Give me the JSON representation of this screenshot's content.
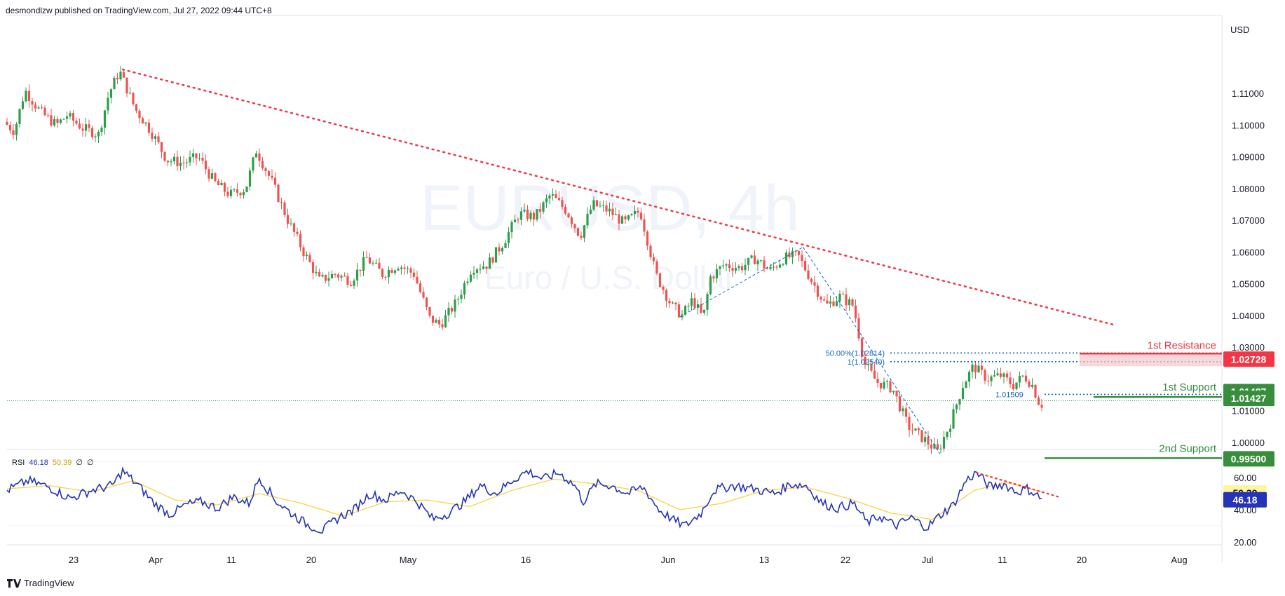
{
  "header": {
    "publisher": "desmondlzw published on TradingView.com, Jul 27, 2022 09:44 UTC+8"
  },
  "footer": {
    "brand": "TradingView"
  },
  "watermark": {
    "symbol": "EURUSD, 4h",
    "name": "Euro / U.S. Dollar"
  },
  "colors": {
    "up": "#2e9e48",
    "down": "#ef5350",
    "resistance": "#f23645",
    "support": "#388e3c",
    "rsi": "#2433b8",
    "rsi_ma": "#f5d547",
    "fib": "#1565c0"
  },
  "chart_data": [
    {
      "type": "candlestick",
      "currency_label": "USD",
      "ylim": [
        0.99,
        1.12
      ],
      "y_ticks": [
        "1.11000",
        "1.10000",
        "1.09000",
        "1.08000",
        "1.07000",
        "1.06000",
        "1.05000",
        "1.04000",
        "1.03000",
        "1.01000",
        "1.00000"
      ],
      "x_ticks": [
        "23",
        "Apr",
        "11",
        "20",
        "May",
        "16",
        "Jun",
        "13",
        "22",
        "Jul",
        "11",
        "20",
        "Aug"
      ],
      "anchors": [
        {
          "t": 0,
          "v": 1.101
        },
        {
          "t": 10,
          "v": 1.098
        },
        {
          "t": 20,
          "v": 1.111
        },
        {
          "t": 35,
          "v": 1.104
        },
        {
          "t": 50,
          "v": 1.1
        },
        {
          "t": 60,
          "v": 1.103
        },
        {
          "t": 75,
          "v": 1.099
        },
        {
          "t": 90,
          "v": 1.097
        },
        {
          "t": 100,
          "v": 1.11
        },
        {
          "t": 110,
          "v": 1.117
        },
        {
          "t": 125,
          "v": 1.105
        },
        {
          "t": 140,
          "v": 1.098
        },
        {
          "t": 155,
          "v": 1.089
        },
        {
          "t": 170,
          "v": 1.088
        },
        {
          "t": 185,
          "v": 1.09
        },
        {
          "t": 200,
          "v": 1.082
        },
        {
          "t": 215,
          "v": 1.078
        },
        {
          "t": 230,
          "v": 1.08
        },
        {
          "t": 240,
          "v": 1.092
        },
        {
          "t": 255,
          "v": 1.082
        },
        {
          "t": 270,
          "v": 1.07
        },
        {
          "t": 285,
          "v": 1.06
        },
        {
          "t": 300,
          "v": 1.051
        },
        {
          "t": 315,
          "v": 1.053
        },
        {
          "t": 330,
          "v": 1.051
        },
        {
          "t": 345,
          "v": 1.058
        },
        {
          "t": 360,
          "v": 1.053
        },
        {
          "t": 375,
          "v": 1.056
        },
        {
          "t": 390,
          "v": 1.053
        },
        {
          "t": 405,
          "v": 1.039
        },
        {
          "t": 415,
          "v": 1.037
        },
        {
          "t": 430,
          "v": 1.044
        },
        {
          "t": 445,
          "v": 1.055
        },
        {
          "t": 460,
          "v": 1.056
        },
        {
          "t": 475,
          "v": 1.063
        },
        {
          "t": 490,
          "v": 1.072
        },
        {
          "t": 505,
          "v": 1.071
        },
        {
          "t": 520,
          "v": 1.078
        },
        {
          "t": 535,
          "v": 1.073
        },
        {
          "t": 548,
          "v": 1.065
        },
        {
          "t": 560,
          "v": 1.075
        },
        {
          "t": 575,
          "v": 1.073
        },
        {
          "t": 590,
          "v": 1.069
        },
        {
          "t": 605,
          "v": 1.073
        },
        {
          "t": 620,
          "v": 1.053
        },
        {
          "t": 635,
          "v": 1.043
        },
        {
          "t": 645,
          "v": 1.04
        },
        {
          "t": 655,
          "v": 1.045
        },
        {
          "t": 665,
          "v": 1.039
        },
        {
          "t": 672,
          "v": 1.052
        },
        {
          "t": 685,
          "v": 1.056
        },
        {
          "t": 700,
          "v": 1.055
        },
        {
          "t": 715,
          "v": 1.058
        },
        {
          "t": 728,
          "v": 1.054
        },
        {
          "t": 742,
          "v": 1.058
        },
        {
          "t": 755,
          "v": 1.059
        },
        {
          "t": 768,
          "v": 1.051
        },
        {
          "t": 782,
          "v": 1.043
        },
        {
          "t": 795,
          "v": 1.046
        },
        {
          "t": 808,
          "v": 1.043
        },
        {
          "t": 818,
          "v": 1.025
        },
        {
          "t": 830,
          "v": 1.019
        },
        {
          "t": 845,
          "v": 1.017
        },
        {
          "t": 860,
          "v": 1.005
        },
        {
          "t": 875,
          "v": 1.001
        },
        {
          "t": 888,
          "v": 0.997
        },
        {
          "t": 900,
          "v": 1.006
        },
        {
          "t": 912,
          "v": 1.018
        },
        {
          "t": 922,
          "v": 1.024
        },
        {
          "t": 935,
          "v": 1.02
        },
        {
          "t": 948,
          "v": 1.021
        },
        {
          "t": 960,
          "v": 1.018
        },
        {
          "t": 970,
          "v": 1.021
        },
        {
          "t": 978,
          "v": 1.018
        },
        {
          "t": 985,
          "v": 1.012
        }
      ],
      "trendline": [
        {
          "t": 110,
          "v": 1.1175
        },
        {
          "t": 1053,
          "v": 1.037
        }
      ],
      "levels": {
        "resistance": {
          "label": "1st Resistance",
          "value": "1.02728",
          "v": 1.02728
        },
        "support1": {
          "label": "1st Support",
          "value": "1.01427",
          "v": 1.01427
        },
        "support2": {
          "label": "2nd Support",
          "value": "0.99500",
          "v": 0.995
        },
        "last_price": {
          "value": "1.01487",
          "v": 1.01487
        }
      },
      "fib": [
        {
          "label": "50.00%(1.02814)",
          "v": 1.02814
        },
        {
          "label": "1(1.02540)",
          "v": 1.0254
        },
        {
          "label": "1.01509",
          "v": 1.01509
        }
      ]
    },
    {
      "type": "line",
      "label": "RSI",
      "values_legend": [
        "46.18",
        "50.39",
        "∅",
        "∅"
      ],
      "ylim": [
        20,
        70
      ],
      "y_ticks": [
        "60.00",
        "40.00",
        "20.00"
      ],
      "rsi_value": "46.18",
      "ma_value": "50.39",
      "rsi_anchors": [
        {
          "t": 0,
          "v": 52
        },
        {
          "t": 20,
          "v": 58
        },
        {
          "t": 40,
          "v": 54
        },
        {
          "t": 60,
          "v": 47
        },
        {
          "t": 80,
          "v": 52
        },
        {
          "t": 100,
          "v": 55
        },
        {
          "t": 110,
          "v": 64
        },
        {
          "t": 125,
          "v": 55
        },
        {
          "t": 140,
          "v": 44
        },
        {
          "t": 155,
          "v": 37
        },
        {
          "t": 170,
          "v": 43
        },
        {
          "t": 185,
          "v": 45
        },
        {
          "t": 200,
          "v": 41
        },
        {
          "t": 215,
          "v": 48
        },
        {
          "t": 230,
          "v": 44
        },
        {
          "t": 240,
          "v": 60
        },
        {
          "t": 255,
          "v": 46
        },
        {
          "t": 270,
          "v": 38
        },
        {
          "t": 285,
          "v": 31
        },
        {
          "t": 300,
          "v": 27
        },
        {
          "t": 315,
          "v": 35
        },
        {
          "t": 330,
          "v": 40
        },
        {
          "t": 345,
          "v": 50
        },
        {
          "t": 360,
          "v": 46
        },
        {
          "t": 375,
          "v": 52
        },
        {
          "t": 390,
          "v": 45
        },
        {
          "t": 405,
          "v": 34
        },
        {
          "t": 420,
          "v": 38
        },
        {
          "t": 435,
          "v": 45
        },
        {
          "t": 450,
          "v": 55
        },
        {
          "t": 465,
          "v": 50
        },
        {
          "t": 480,
          "v": 58
        },
        {
          "t": 495,
          "v": 64
        },
        {
          "t": 510,
          "v": 59
        },
        {
          "t": 525,
          "v": 63
        },
        {
          "t": 540,
          "v": 55
        },
        {
          "t": 548,
          "v": 45
        },
        {
          "t": 560,
          "v": 56
        },
        {
          "t": 575,
          "v": 55
        },
        {
          "t": 590,
          "v": 50
        },
        {
          "t": 605,
          "v": 54
        },
        {
          "t": 620,
          "v": 40
        },
        {
          "t": 635,
          "v": 33
        },
        {
          "t": 645,
          "v": 30
        },
        {
          "t": 660,
          "v": 38
        },
        {
          "t": 672,
          "v": 52
        },
        {
          "t": 690,
          "v": 55
        },
        {
          "t": 710,
          "v": 53
        },
        {
          "t": 730,
          "v": 50
        },
        {
          "t": 745,
          "v": 56
        },
        {
          "t": 760,
          "v": 55
        },
        {
          "t": 775,
          "v": 44
        },
        {
          "t": 790,
          "v": 41
        },
        {
          "t": 805,
          "v": 44
        },
        {
          "t": 818,
          "v": 32
        },
        {
          "t": 830,
          "v": 36
        },
        {
          "t": 845,
          "v": 30
        },
        {
          "t": 860,
          "v": 35
        },
        {
          "t": 875,
          "v": 29
        },
        {
          "t": 888,
          "v": 37
        },
        {
          "t": 900,
          "v": 43
        },
        {
          "t": 912,
          "v": 58
        },
        {
          "t": 922,
          "v": 63
        },
        {
          "t": 935,
          "v": 54
        },
        {
          "t": 948,
          "v": 56
        },
        {
          "t": 960,
          "v": 51
        },
        {
          "t": 970,
          "v": 53
        },
        {
          "t": 978,
          "v": 50
        },
        {
          "t": 985,
          "v": 46
        }
      ],
      "ma_anchors": [
        {
          "t": 0,
          "v": 53
        },
        {
          "t": 40,
          "v": 55
        },
        {
          "t": 80,
          "v": 51
        },
        {
          "t": 120,
          "v": 58
        },
        {
          "t": 160,
          "v": 46
        },
        {
          "t": 200,
          "v": 43
        },
        {
          "t": 240,
          "v": 50
        },
        {
          "t": 280,
          "v": 44
        },
        {
          "t": 320,
          "v": 36
        },
        {
          "t": 360,
          "v": 45
        },
        {
          "t": 400,
          "v": 46
        },
        {
          "t": 440,
          "v": 42
        },
        {
          "t": 480,
          "v": 52
        },
        {
          "t": 520,
          "v": 59
        },
        {
          "t": 560,
          "v": 56
        },
        {
          "t": 600,
          "v": 52
        },
        {
          "t": 640,
          "v": 40
        },
        {
          "t": 680,
          "v": 44
        },
        {
          "t": 720,
          "v": 52
        },
        {
          "t": 760,
          "v": 54
        },
        {
          "t": 800,
          "v": 47
        },
        {
          "t": 840,
          "v": 38
        },
        {
          "t": 880,
          "v": 34
        },
        {
          "t": 920,
          "v": 52
        },
        {
          "t": 950,
          "v": 57
        },
        {
          "t": 985,
          "v": 51
        }
      ],
      "trendline": [
        {
          "t": 922,
          "v": 63
        },
        {
          "t": 1000,
          "v": 48
        }
      ]
    }
  ]
}
